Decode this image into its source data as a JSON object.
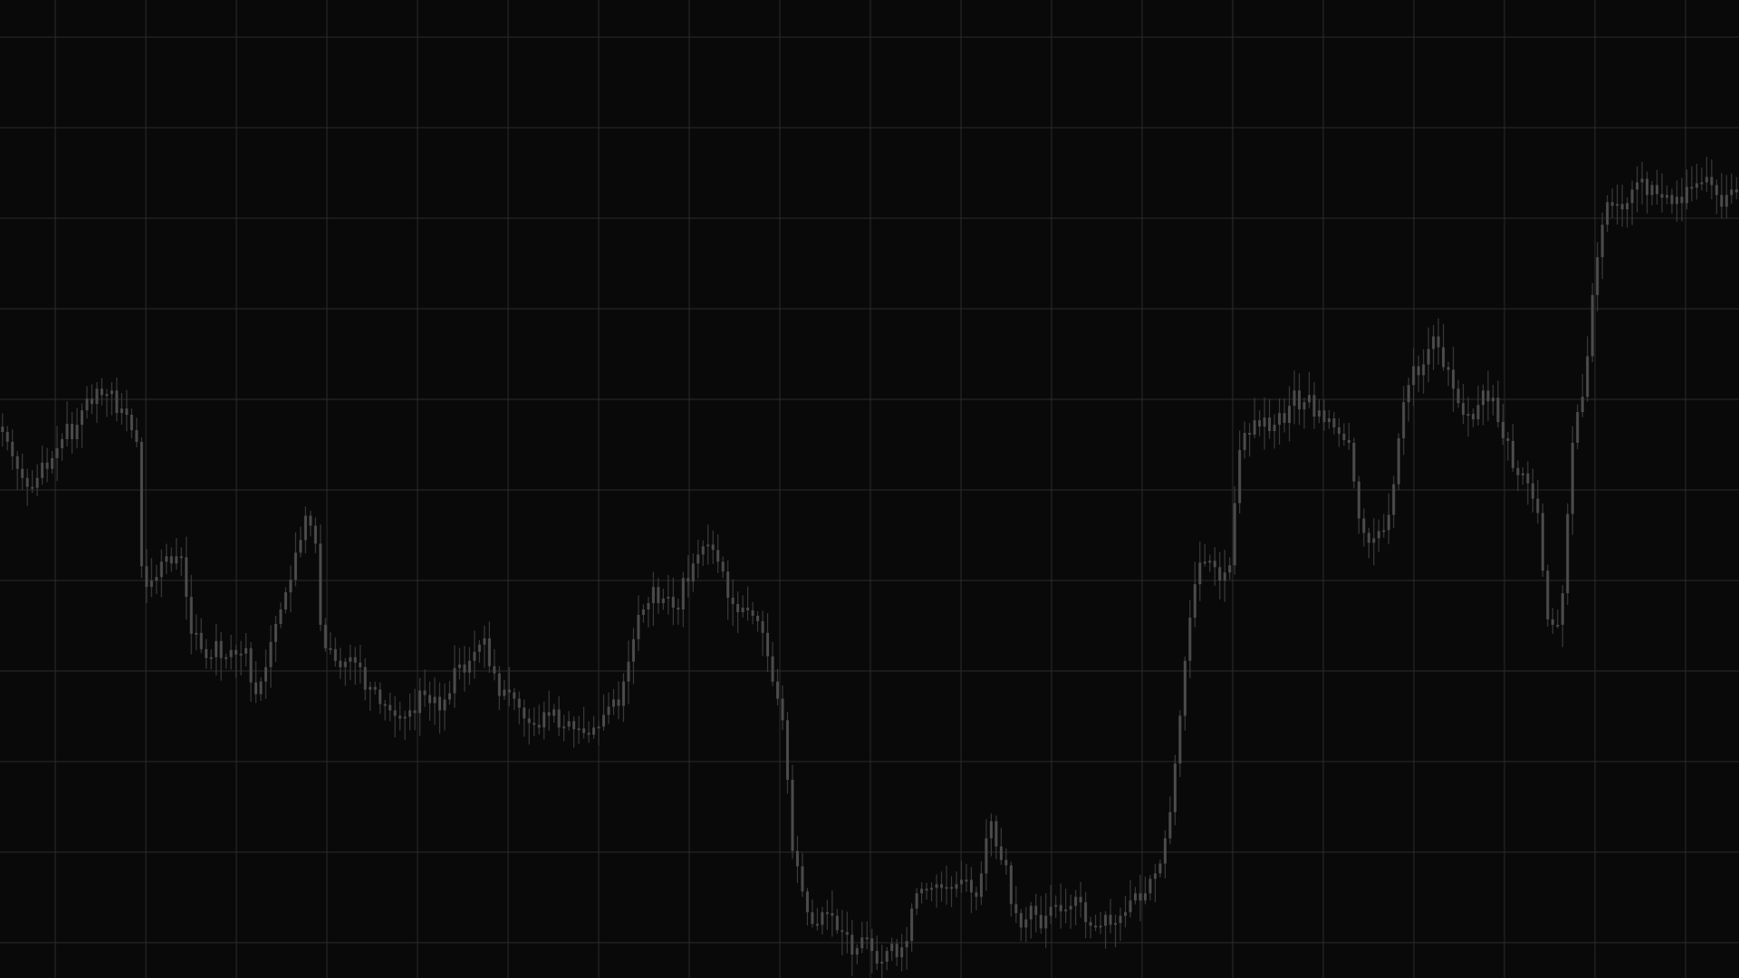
{
  "chart_data": {
    "type": "candlestick",
    "title": "",
    "xlabel": "",
    "ylabel": "",
    "grid": true,
    "legend": "none",
    "ylim": [
      0,
      100
    ],
    "colors": {
      "background": "#090909",
      "grid": "#2c2c2c",
      "candle": "#4b4b4b",
      "wick": "#3a3a3a"
    },
    "close": [
      60.1,
      59.0,
      57.4,
      56.0,
      55.0,
      54.0,
      53.9,
      55.0,
      56.7,
      56.0,
      57.2,
      58.3,
      59.3,
      61.0,
      59.3,
      60.9,
      62.5,
      63.8,
      63.2,
      64.9,
      64.2,
      64.3,
      64.7,
      62.2,
      62.7,
      62.0,
      60.3,
      59.0,
      45.2,
      42.9,
      43.6,
      44.0,
      45.7,
      46.3,
      45.5,
      46.3,
      46.2,
      41.8,
      37.7,
      37.8,
      36.0,
      35.0,
      35.1,
      36.9,
      35.0,
      35.1,
      35.9,
      35.4,
      35.5,
      36.1,
      32.3,
      31.0,
      32.4,
      34.0,
      36.8,
      38.8,
      40.4,
      42.3,
      43.7,
      46.7,
      48.1,
      50.8,
      49.7,
      47.7,
      38.7,
      36.1,
      36.0,
      34.7,
      34.0,
      34.6,
      35.1,
      34.5,
      34.0,
      31.5,
      31.8,
      31.5,
      29.9,
      29.8,
      29.2,
      28.6,
      28.3,
      28.5,
      29.2,
      28.9,
      31.4,
      30.9,
      30.0,
      30.7,
      29.2,
      30.4,
      31.1,
      33.9,
      34.3,
      33.4,
      34.7,
      35.7,
      36.5,
      37.2,
      34.1,
      33.3,
      30.8,
      31.5,
      31.2,
      30.5,
      29.5,
      28.3,
      27.8,
      27.6,
      27.3,
      29.0,
      28.6,
      29.3,
      27.3,
      27.4,
      28.0,
      27.1,
      27.2,
      26.7,
      26.5,
      27.3,
      27.4,
      28.7,
      29.6,
      30.4,
      29.7,
      32.4,
      34.6,
      37.1,
      39.8,
      40.4,
      41.1,
      42.9,
      41.1,
      41.6,
      41.8,
      40.6,
      40.4,
      43.9,
      43.5,
      45.5,
      46.5,
      47.4,
      47.6,
      47.0,
      45.7,
      44.6,
      41.7,
      41.0,
      40.1,
      40.6,
      40.3,
      39.7,
      39.1,
      37.8,
      35.2,
      32.4,
      30.5,
      28.1,
      21.5,
      13.6,
      11.9,
      9.1,
      6.8,
      5.5,
      5.4,
      6.8,
      6.7,
      6.4,
      4.8,
      4.6,
      4.3,
      2.1,
      2.8,
      4.0,
      3.9,
      2.5,
      1.1,
      1.3,
      2.5,
      3.3,
      1.8,
      2.9,
      3.6,
      7.2,
      8.9,
      9.4,
      9.3,
      9.5,
      9.9,
      9.5,
      9.6,
      9.4,
      9.9,
      10.4,
      10.4,
      9.0,
      8.5,
      11.1,
      15.0,
      16.9,
      14.1,
      12.6,
      12.0,
      7.7,
      6.7,
      5.1,
      6.0,
      7.5,
      6.5,
      5.0,
      6.4,
      7.4,
      7.6,
      6.9,
      7.1,
      7.5,
      8.5,
      7.9,
      5.7,
      5.3,
      5.3,
      5.3,
      6.5,
      5.4,
      5.6,
      6.4,
      6.8,
      8.1,
      8.9,
      8.1,
      8.9,
      10.5,
      11.1,
      12.2,
      15.0,
      17.9,
      23.3,
      28.6,
      34.7,
      39.5,
      43.2,
      45.6,
      45.7,
      45.8,
      45.1,
      43.6,
      44.5,
      45.3,
      52.2,
      58.1,
      60.0,
      59.8,
      61.4,
      60.7,
      61.7,
      60.2,
      60.9,
      62.2,
      61.1,
      63.0,
      64.7,
      62.6,
      63.4,
      64.2,
      61.8,
      62.5,
      61.2,
      61.6,
      60.6,
      59.9,
      59.2,
      58.9,
      54.6,
      50.5,
      48.9,
      47.8,
      48.3,
      49.1,
      49.2,
      50.9,
      54.3,
      59.4,
      63.4,
      65.3,
      67.4,
      66.4,
      67.6,
      69.3,
      70.7,
      69.5,
      67.3,
      67.0,
      64.9,
      63.3,
      62.0,
      62.1,
      61.5,
      63.1,
      64.7,
      63.5,
      63.9,
      61.2,
      59.4,
      59.1,
      56.1,
      55.3,
      55.5,
      54.4,
      52.7,
      51.1,
      44.7,
      39.3,
      38.7,
      38.7,
      42.2,
      51.0,
      58.9,
      62.3,
      64.0,
      68.5,
      75.3,
      79.5,
      83.1,
      85.6,
      85.2,
      85.4,
      84.8,
      85.5,
      87.0,
      87.8,
      88.2,
      86.4,
      87.5,
      86.5,
      86.1,
      86.4,
      85.4,
      86.2,
      85.5,
      87.3,
      87.2,
      87.7,
      87.8,
      88.4,
      87.5,
      86.4,
      85.1,
      86.4,
      87.0,
      86.7
    ]
  }
}
